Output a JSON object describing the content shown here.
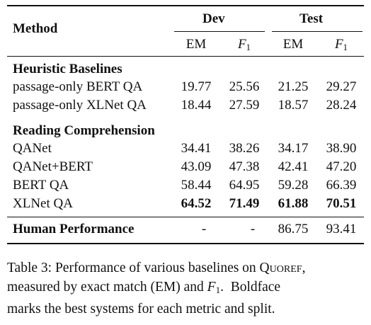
{
  "table": {
    "header": {
      "method": "Method",
      "dev": "Dev",
      "test": "Test",
      "em": "EM",
      "f1_base": "F",
      "f1_sub": "1"
    },
    "sections": [
      {
        "title": "Heuristic Baselines",
        "rows": [
          {
            "method": "passage-only BERT QA",
            "dev_em": "19.77",
            "dev_f1": "25.56",
            "test_em": "21.25",
            "test_f1": "29.27",
            "bold": false
          },
          {
            "method": "passage-only XLNet QA",
            "dev_em": "18.44",
            "dev_f1": "27.59",
            "test_em": "18.57",
            "test_f1": "28.24",
            "bold": false
          }
        ]
      },
      {
        "title": "Reading Comprehension",
        "rows": [
          {
            "method": "QANet",
            "dev_em": "34.41",
            "dev_f1": "38.26",
            "test_em": "34.17",
            "test_f1": "38.90",
            "bold": false
          },
          {
            "method": "QANet+BERT",
            "dev_em": "43.09",
            "dev_f1": "47.38",
            "test_em": "42.41",
            "test_f1": "47.20",
            "bold": false
          },
          {
            "method": "BERT QA",
            "dev_em": "58.44",
            "dev_f1": "64.95",
            "test_em": "59.28",
            "test_f1": "66.39",
            "bold": false
          },
          {
            "method": "XLNet QA",
            "dev_em": "64.52",
            "dev_f1": "71.49",
            "test_em": "61.88",
            "test_f1": "70.51",
            "bold": true
          }
        ]
      }
    ],
    "human": {
      "method": "Human Performance",
      "dev_em": "-",
      "dev_f1": "-",
      "test_em": "86.75",
      "test_f1": "93.41"
    }
  },
  "caption": {
    "line1_a": "Table 3: Performance of various baselines on Q",
    "line1_b": "uoref",
    "line1_c": ",",
    "line2_a": "measured by exact match (EM) and ",
    "line2_f": "F",
    "line2_sub": "1",
    "line2_b": ".  Boldface",
    "line3": "marks the best systems for each metric and split."
  }
}
